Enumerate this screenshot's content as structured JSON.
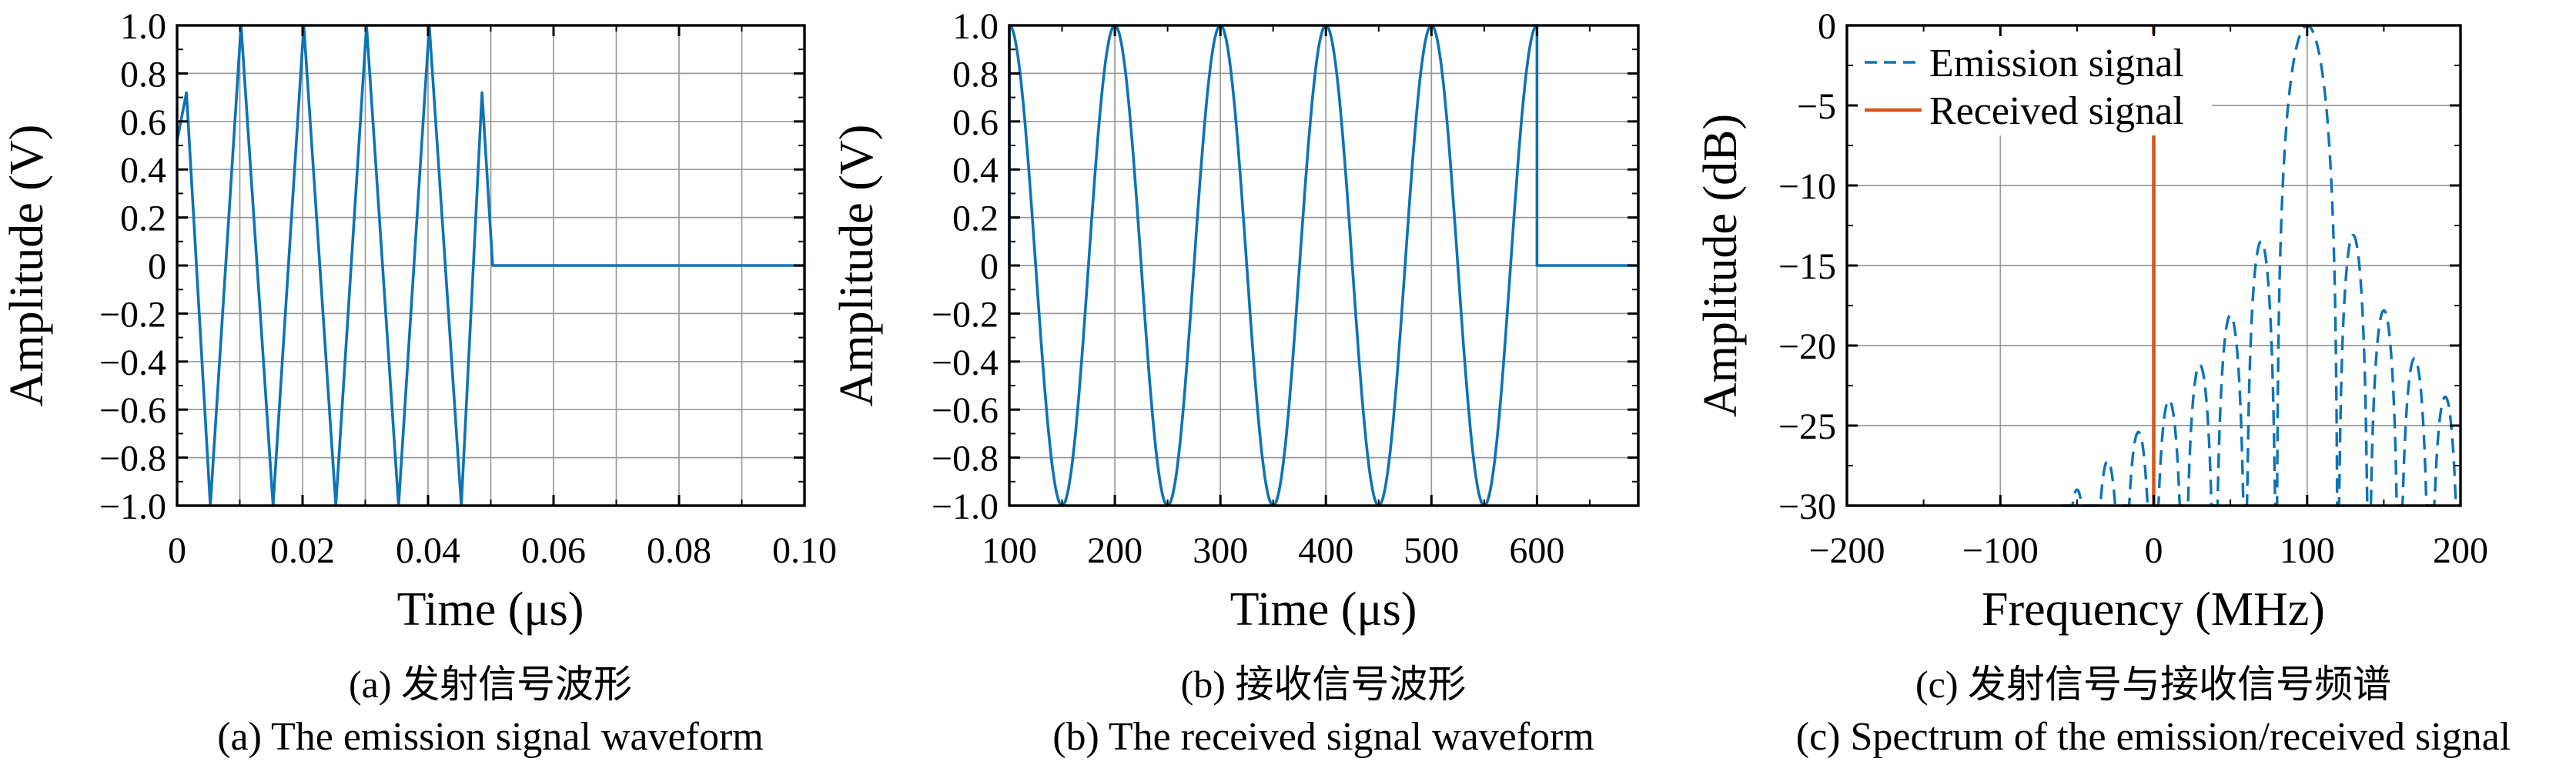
{
  "figure": {
    "background": "#ffffff",
    "accent_blue": "#0e73b4",
    "accent_orange": "#d95319",
    "grid_color": "#9a9a9a",
    "frame_color": "#000000"
  },
  "chart_data": [
    {
      "id": "a",
      "type": "line",
      "title_cn": "(a) 发射信号波形",
      "title_en": "(a) The emission signal waveform",
      "xlabel": "Time (μs)",
      "ylabel": "Amplitude (V)",
      "xlim": [
        0,
        0.1
      ],
      "ylim": [
        -1,
        1
      ],
      "x_ticks": {
        "values": [
          0,
          0.02,
          0.04,
          0.06,
          0.08,
          0.1
        ],
        "labels": [
          "0",
          "0.02",
          "0.04",
          "0.06",
          "0.08",
          "0.10"
        ]
      },
      "y_ticks": {
        "values": [
          1,
          0.8,
          0.6,
          0.4,
          0.2,
          0,
          -0.2,
          -0.4,
          -0.6,
          -0.8,
          -1
        ],
        "labels": [
          "1.0",
          "0.8",
          "0.6",
          "0.4",
          "0.2",
          "0",
          "−0.2",
          "−0.4",
          "−0.6",
          "−0.8",
          "−1.0"
        ]
      },
      "x_minor_step": 0.01,
      "y_minor_step": 0.1,
      "x_grid_step": 0.01,
      "y_grid_step": 0.2,
      "series": [
        {
          "name": "emission-waveform",
          "color": "#0e73b4",
          "style": "solid",
          "description": "5-cycle 100 MHz sine burst from 0 to 0.05 μs, zero afterwards",
          "points": [
            [
              0,
              0.52
            ],
            [
              0.0015,
              0.72
            ],
            [
              0.0053,
              -1
            ],
            [
              0.0102,
              1
            ],
            [
              0.0153,
              -1
            ],
            [
              0.0202,
              1
            ],
            [
              0.0253,
              -1
            ],
            [
              0.0302,
              1
            ],
            [
              0.0353,
              -1
            ],
            [
              0.0402,
              1
            ],
            [
              0.0453,
              -1
            ],
            [
              0.0486,
              0.72
            ],
            [
              0.0503,
              0
            ],
            [
              0.1,
              0
            ]
          ]
        }
      ]
    },
    {
      "id": "b",
      "type": "line",
      "title_cn": "(b) 接收信号波形",
      "title_en": "(b) The received signal waveform",
      "xlabel": "Time (μs)",
      "ylabel": "Amplitude (V)",
      "xlim": [
        100,
        696
      ],
      "ylim": [
        -1,
        1
      ],
      "x_ticks": {
        "values": [
          100,
          200,
          300,
          400,
          500,
          600
        ],
        "labels": [
          "100",
          "200",
          "300",
          "400",
          "500",
          "600"
        ]
      },
      "y_ticks": {
        "values": [
          1,
          0.8,
          0.6,
          0.4,
          0.2,
          0,
          -0.2,
          -0.4,
          -0.6,
          -0.8,
          -1
        ],
        "labels": [
          "1.0",
          "0.8",
          "0.6",
          "0.4",
          "0.2",
          "0",
          "−0.2",
          "−0.4",
          "−0.6",
          "−0.8",
          "−1.0"
        ]
      },
      "x_minor_step": 50,
      "y_minor_step": 0.1,
      "x_grid_step": 100,
      "y_grid_step": 0.2,
      "series": [
        {
          "name": "received-waveform",
          "color": "#0e73b4",
          "style": "solid",
          "description": "5-cycle cosine burst, period 100 μs, from 100 to 600 μs (peaks at 100..600, minima at 150..550), zero after 600 μs",
          "generator": {
            "kind": "cosine-burst",
            "t_start": 100,
            "t_end": 600,
            "period": 100,
            "amplitude": 1,
            "level_before": 0,
            "level_after": 0
          }
        }
      ]
    },
    {
      "id": "c",
      "type": "line",
      "title_cn": "(c) 发射信号与接收信号频谱",
      "title_en": "(c) Spectrum of the emission/received signal",
      "xlabel": "Frequency (MHz)",
      "ylabel": "Amplitude (dB)",
      "xlim": [
        -200,
        200
      ],
      "ylim": [
        -30,
        0
      ],
      "x_ticks": {
        "values": [
          -200,
          -100,
          0,
          100,
          200
        ],
        "labels": [
          "−200",
          "−100",
          "0",
          "100",
          "200"
        ]
      },
      "y_ticks": {
        "values": [
          0,
          -5,
          -10,
          -15,
          -20,
          -25,
          -30
        ],
        "labels": [
          "0",
          "−5",
          "−10",
          "−15",
          "−20",
          "−25",
          "−30"
        ]
      },
      "x_minor_step": 50,
      "y_minor_step": 2.5,
      "x_grid_step": 100,
      "y_grid_step": 5,
      "legend": {
        "items": [
          {
            "label": "Emission signal",
            "style": "dashed",
            "color": "#0e73b4"
          },
          {
            "label": "Received signal",
            "style": "solid",
            "color": "#d95319"
          }
        ]
      },
      "series": [
        {
          "name": "Emission signal",
          "color": "#0e73b4",
          "style": "dashed",
          "floor_db": -30,
          "peak_frequency_mhz": 100,
          "null_spacing_mhz": 20,
          "description": "sinc-like spectrum of the 5-cycle burst: main lobe 80–120 MHz peaking 0 dB at 100 MHz; sidelobe peaks given as [f_start, f_end, peak_dB]",
          "lobes": [
            [
              -60,
              -40,
              -29
            ],
            [
              -40,
              -20,
              -27.2
            ],
            [
              -20,
              0,
              -25.4
            ],
            [
              0,
              20,
              -23.4
            ],
            [
              20,
              40,
              -21.2
            ],
            [
              40,
              60,
              -18.1
            ],
            [
              60,
              80,
              -13.5
            ],
            [
              80,
              120,
              0
            ],
            [
              120,
              140,
              -13.1
            ],
            [
              140,
              160,
              -17.8
            ],
            [
              160,
              180,
              -20.8
            ],
            [
              180,
              200,
              -23.2
            ]
          ]
        },
        {
          "name": "Received signal",
          "color": "#d95319",
          "style": "solid",
          "description": "narrowband received-signal spectrum: vertical line at ~0 MHz from 0 dB down to -30 dB",
          "vline_frequency_mhz": 0,
          "top_db": 0,
          "floor_db": -30
        }
      ]
    }
  ]
}
